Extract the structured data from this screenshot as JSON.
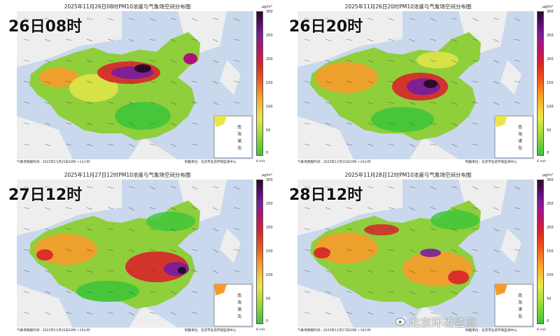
{
  "panels": [
    {
      "title": "2025年11月26日08时PM10浓度与气象场空间分布图",
      "big_label": "26日08时",
      "foot_left": "气象场预报时间：2025年11月25日20时 +12小时",
      "foot_right": "制图单位：北京市生态环境监测中心"
    },
    {
      "title": "2025年11月26日20时PM10浓度与气象场空间分布图",
      "big_label": "26日20时",
      "foot_left": "气象场预报时间：2025年11月25日20时 +24小时",
      "foot_right": "制图单位：北京市生态环境监测中心"
    },
    {
      "title": "2025年11月27日12时PM10浓度与气象场空间分布图",
      "big_label": "27日12时",
      "foot_left": "气象场预报时间：2025年11月26日20时 +16小时",
      "foot_right": "制图单位：北京市生态环境监测中心"
    },
    {
      "title": "2025年11月28日12时PM10浓度与气象场空间分布图",
      "big_label": "28日12时",
      "foot_left": "气象场预报时间：2025年11月27日20时 +16小时",
      "foot_right": "制图单位：北京市生态环境监测中心"
    }
  ],
  "colorbar": {
    "unit": "μg/m³",
    "ticks": [
      "300",
      "250",
      "200",
      "150",
      "100",
      "50",
      "0"
    ]
  },
  "inset_labels": [
    "南",
    "海",
    "诸",
    "岛"
  ],
  "wind_legend": "6 m/s",
  "watermark": "北京环境监测",
  "colors": {
    "ocean": "#c9d8ec",
    "land_outside": "#eeeeee",
    "low": "#3cc43a",
    "mid": "#f79a2a",
    "high": "#d8232a",
    "extreme": "#5a0a6a"
  }
}
